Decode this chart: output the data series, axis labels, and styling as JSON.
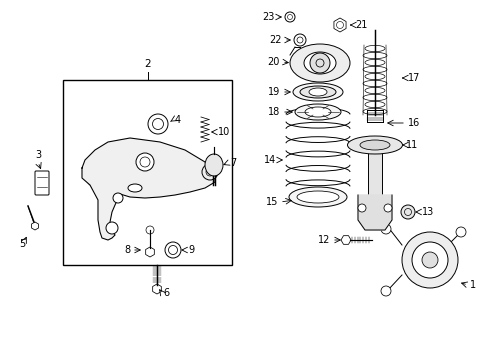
{
  "bg_color": "#ffffff",
  "fig_width": 4.9,
  "fig_height": 3.6,
  "dpi": 100,
  "lc": "#000000",
  "lw": 0.7,
  "fs": 7.0
}
